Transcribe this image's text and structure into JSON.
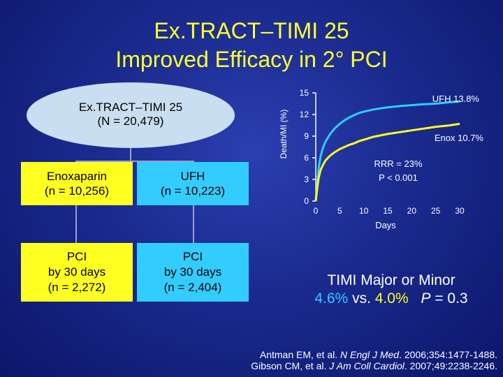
{
  "header": {
    "title": "Ex.TRACT–TIMI 25",
    "subtitle": "Improved Efficacy in 2° PCI"
  },
  "tree": {
    "root_line1": "Ex.TRACT–TIMI 25",
    "root_line2": "(N = 20,479)",
    "enox_label": "Enoxaparin",
    "enox_n": "(n = 10,256)",
    "ufh_label": "UFH",
    "ufh_n": "(n = 10,223)",
    "pci_enox_line1": "PCI",
    "pci_enox_line2": "by 30 days",
    "pci_enox_n": "(n = 2,272)",
    "pci_ufh_line1": "PCI",
    "pci_ufh_line2": "by 30 days",
    "pci_ufh_n": "(n = 2,404)"
  },
  "colors": {
    "ufh": "#33ccff",
    "enox": "#ffff22",
    "title": "#ffff33"
  },
  "chart_data": {
    "type": "line",
    "title": "",
    "xlabel": "Days",
    "ylabel": "Death/MI (%)",
    "xlim": [
      0,
      30
    ],
    "ylim": [
      0,
      15
    ],
    "xticks": [
      0,
      5,
      10,
      15,
      20,
      25,
      30
    ],
    "yticks": [
      0,
      3,
      6,
      9,
      12,
      15
    ],
    "series": [
      {
        "name": "UFH",
        "label": "UFH 13.8%",
        "x": [
          0,
          0.3,
          0.6,
          1,
          1.5,
          2,
          3,
          4,
          5,
          6,
          7,
          8,
          9,
          10,
          12,
          15,
          18,
          20,
          22,
          25,
          28,
          30
        ],
        "y": [
          0,
          2.5,
          4.5,
          6.2,
          7.4,
          8.2,
          9.3,
          10.1,
          10.7,
          11.2,
          11.6,
          11.9,
          12.2,
          12.4,
          12.7,
          13.0,
          13.2,
          13.3,
          13.4,
          13.5,
          13.7,
          13.8
        ]
      },
      {
        "name": "Enox",
        "label": "Enox 10.7%",
        "x": [
          0,
          0.3,
          0.6,
          1,
          1.5,
          2,
          3,
          4,
          5,
          6,
          7,
          8,
          9,
          10,
          12,
          15,
          18,
          20,
          22,
          25,
          28,
          30
        ],
        "y": [
          0,
          1.8,
          3.2,
          4.3,
          5.0,
          5.6,
          6.3,
          6.8,
          7.2,
          7.5,
          7.8,
          8.0,
          8.3,
          8.5,
          8.9,
          9.3,
          9.6,
          9.8,
          10.0,
          10.3,
          10.5,
          10.7
        ]
      }
    ],
    "annotation_line1": "RRR = 23%",
    "annotation_line2": "P < 0.001"
  },
  "result": {
    "line1": "TIMI Major or Minor",
    "ufh_rate": "4.6%",
    "vs": " vs. ",
    "enox_rate": "4.0%",
    "pvalue": "P = 0.3"
  },
  "references": {
    "ref1_authors": "Antman EM, et al. ",
    "ref1_journal": "N Engl J Med",
    "ref1_rest": ". 2006;354:1477-1488.",
    "ref2_authors": "Gibson CM, et al. ",
    "ref2_journal": "J Am Coll Cardiol",
    "ref2_rest": ". 2007;49:2238-2246."
  }
}
